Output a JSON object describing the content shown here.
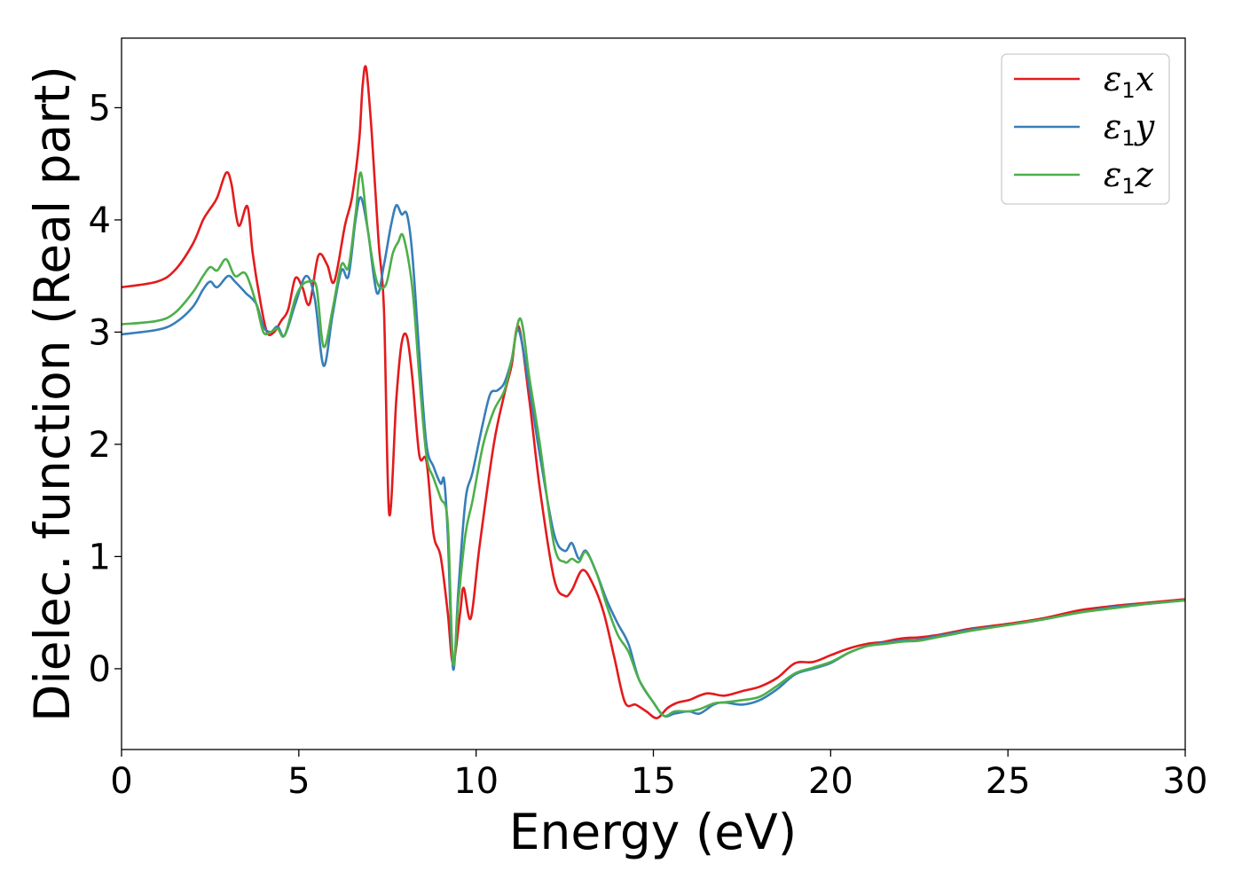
{
  "chart_data": {
    "type": "line",
    "title": "",
    "xlabel": "Energy (eV)",
    "ylabel": "Dielec. function (Real part)",
    "xlim": [
      0,
      30
    ],
    "ylim": [
      -0.72,
      5.62
    ],
    "xticks": [
      "0",
      "5",
      "10",
      "15",
      "20",
      "25",
      "30"
    ],
    "yticks": [
      "0",
      "1",
      "2",
      "3",
      "4",
      "5"
    ],
    "grid": false,
    "legend_position": "top-right",
    "series": [
      {
        "name": "ε1x",
        "legend": {
          "symbol": "ε",
          "sub": "1",
          "axis": "x"
        },
        "color": "#e41a1c",
        "points": [
          [
            0,
            3.4
          ],
          [
            1.0,
            3.45
          ],
          [
            1.5,
            3.55
          ],
          [
            2.0,
            3.78
          ],
          [
            2.3,
            4.0
          ],
          [
            2.5,
            4.1
          ],
          [
            2.7,
            4.2
          ],
          [
            2.95,
            4.42
          ],
          [
            3.1,
            4.32
          ],
          [
            3.3,
            3.95
          ],
          [
            3.55,
            4.12
          ],
          [
            3.7,
            3.7
          ],
          [
            3.9,
            3.3
          ],
          [
            4.1,
            3.0
          ],
          [
            4.3,
            3.0
          ],
          [
            4.5,
            3.1
          ],
          [
            4.7,
            3.2
          ],
          [
            4.9,
            3.48
          ],
          [
            5.1,
            3.4
          ],
          [
            5.3,
            3.25
          ],
          [
            5.55,
            3.68
          ],
          [
            5.8,
            3.6
          ],
          [
            6.0,
            3.45
          ],
          [
            6.3,
            3.95
          ],
          [
            6.5,
            4.2
          ],
          [
            6.7,
            4.7
          ],
          [
            6.8,
            5.2
          ],
          [
            6.9,
            5.35
          ],
          [
            7.05,
            4.8
          ],
          [
            7.25,
            3.8
          ],
          [
            7.4,
            3.2
          ],
          [
            7.55,
            1.38
          ],
          [
            7.75,
            2.4
          ],
          [
            7.9,
            2.9
          ],
          [
            8.05,
            2.96
          ],
          [
            8.2,
            2.6
          ],
          [
            8.4,
            1.9
          ],
          [
            8.6,
            1.85
          ],
          [
            8.8,
            1.2
          ],
          [
            9.0,
            1.0
          ],
          [
            9.2,
            0.5
          ],
          [
            9.35,
            0.05
          ],
          [
            9.55,
            0.5
          ],
          [
            9.65,
            0.72
          ],
          [
            9.85,
            0.45
          ],
          [
            10.1,
            1.1
          ],
          [
            10.5,
            2.0
          ],
          [
            10.8,
            2.45
          ],
          [
            11.0,
            2.7
          ],
          [
            11.2,
            3.05
          ],
          [
            11.5,
            2.4
          ],
          [
            11.8,
            1.6
          ],
          [
            12.2,
            0.8
          ],
          [
            12.5,
            0.65
          ],
          [
            12.7,
            0.7
          ],
          [
            13.0,
            0.88
          ],
          [
            13.3,
            0.75
          ],
          [
            13.6,
            0.5
          ],
          [
            13.9,
            0.1
          ],
          [
            14.2,
            -0.3
          ],
          [
            14.5,
            -0.32
          ],
          [
            14.8,
            -0.38
          ],
          [
            15.1,
            -0.44
          ],
          [
            15.4,
            -0.35
          ],
          [
            15.7,
            -0.3
          ],
          [
            16.0,
            -0.28
          ],
          [
            16.5,
            -0.22
          ],
          [
            17.0,
            -0.24
          ],
          [
            17.5,
            -0.2
          ],
          [
            18.0,
            -0.16
          ],
          [
            18.5,
            -0.08
          ],
          [
            19.0,
            0.05
          ],
          [
            19.5,
            0.06
          ],
          [
            20.0,
            0.12
          ],
          [
            20.5,
            0.18
          ],
          [
            21.0,
            0.22
          ],
          [
            21.5,
            0.24
          ],
          [
            22.0,
            0.27
          ],
          [
            22.5,
            0.28
          ],
          [
            23.0,
            0.3
          ],
          [
            23.5,
            0.33
          ],
          [
            24.0,
            0.36
          ],
          [
            25.0,
            0.4
          ],
          [
            26.0,
            0.45
          ],
          [
            27.0,
            0.52
          ],
          [
            28.0,
            0.56
          ],
          [
            29.0,
            0.59
          ],
          [
            30.0,
            0.62
          ]
        ]
      },
      {
        "name": "ε1y",
        "legend": {
          "symbol": "ε",
          "sub": "1",
          "axis": "y"
        },
        "color": "#377eb8",
        "points": [
          [
            0,
            2.98
          ],
          [
            1.0,
            3.02
          ],
          [
            1.5,
            3.08
          ],
          [
            2.0,
            3.22
          ],
          [
            2.3,
            3.38
          ],
          [
            2.5,
            3.45
          ],
          [
            2.7,
            3.4
          ],
          [
            3.0,
            3.5
          ],
          [
            3.2,
            3.45
          ],
          [
            3.5,
            3.35
          ],
          [
            3.8,
            3.25
          ],
          [
            4.0,
            3.05
          ],
          [
            4.2,
            3.0
          ],
          [
            4.4,
            3.05
          ],
          [
            4.6,
            2.97
          ],
          [
            4.9,
            3.25
          ],
          [
            5.2,
            3.5
          ],
          [
            5.45,
            3.3
          ],
          [
            5.7,
            2.7
          ],
          [
            5.95,
            3.15
          ],
          [
            6.2,
            3.55
          ],
          [
            6.4,
            3.5
          ],
          [
            6.6,
            4.0
          ],
          [
            6.75,
            4.2
          ],
          [
            6.95,
            3.9
          ],
          [
            7.2,
            3.35
          ],
          [
            7.4,
            3.6
          ],
          [
            7.6,
            3.95
          ],
          [
            7.75,
            4.13
          ],
          [
            7.9,
            4.05
          ],
          [
            8.05,
            4.05
          ],
          [
            8.2,
            3.7
          ],
          [
            8.4,
            2.8
          ],
          [
            8.6,
            2.0
          ],
          [
            8.8,
            1.8
          ],
          [
            9.0,
            1.65
          ],
          [
            9.1,
            1.68
          ],
          [
            9.2,
            1.2
          ],
          [
            9.35,
            0.0
          ],
          [
            9.5,
            0.7
          ],
          [
            9.7,
            1.5
          ],
          [
            9.9,
            1.75
          ],
          [
            10.2,
            2.2
          ],
          [
            10.4,
            2.45
          ],
          [
            10.6,
            2.48
          ],
          [
            10.8,
            2.55
          ],
          [
            11.0,
            2.75
          ],
          [
            11.2,
            3.02
          ],
          [
            11.5,
            2.5
          ],
          [
            11.8,
            1.9
          ],
          [
            12.2,
            1.2
          ],
          [
            12.5,
            1.05
          ],
          [
            12.7,
            1.12
          ],
          [
            12.9,
            0.98
          ],
          [
            13.1,
            1.05
          ],
          [
            13.4,
            0.85
          ],
          [
            13.7,
            0.6
          ],
          [
            14.0,
            0.4
          ],
          [
            14.3,
            0.22
          ],
          [
            14.6,
            -0.1
          ],
          [
            15.0,
            -0.3
          ],
          [
            15.3,
            -0.42
          ],
          [
            15.6,
            -0.4
          ],
          [
            16.0,
            -0.38
          ],
          [
            16.3,
            -0.4
          ],
          [
            16.7,
            -0.32
          ],
          [
            17.0,
            -0.3
          ],
          [
            17.5,
            -0.32
          ],
          [
            18.0,
            -0.28
          ],
          [
            18.5,
            -0.18
          ],
          [
            19.0,
            -0.05
          ],
          [
            19.5,
            0.0
          ],
          [
            20.0,
            0.05
          ],
          [
            20.5,
            0.14
          ],
          [
            21.0,
            0.2
          ],
          [
            21.5,
            0.23
          ],
          [
            22.0,
            0.25
          ],
          [
            22.5,
            0.26
          ],
          [
            23.0,
            0.29
          ],
          [
            23.5,
            0.32
          ],
          [
            24.0,
            0.35
          ],
          [
            25.0,
            0.39
          ],
          [
            26.0,
            0.44
          ],
          [
            27.0,
            0.5
          ],
          [
            28.0,
            0.55
          ],
          [
            29.0,
            0.58
          ],
          [
            30.0,
            0.61
          ]
        ]
      },
      {
        "name": "ε1z",
        "legend": {
          "symbol": "ε",
          "sub": "1",
          "axis": "z"
        },
        "color": "#4daf4a",
        "points": [
          [
            0,
            3.07
          ],
          [
            1.0,
            3.1
          ],
          [
            1.5,
            3.17
          ],
          [
            2.0,
            3.35
          ],
          [
            2.3,
            3.5
          ],
          [
            2.5,
            3.58
          ],
          [
            2.7,
            3.55
          ],
          [
            2.95,
            3.65
          ],
          [
            3.2,
            3.5
          ],
          [
            3.5,
            3.52
          ],
          [
            3.8,
            3.25
          ],
          [
            4.0,
            3.0
          ],
          [
            4.2,
            3.0
          ],
          [
            4.4,
            3.03
          ],
          [
            4.6,
            2.97
          ],
          [
            4.9,
            3.3
          ],
          [
            5.1,
            3.42
          ],
          [
            5.3,
            3.45
          ],
          [
            5.5,
            3.4
          ],
          [
            5.7,
            2.87
          ],
          [
            5.95,
            3.2
          ],
          [
            6.2,
            3.6
          ],
          [
            6.4,
            3.58
          ],
          [
            6.6,
            4.05
          ],
          [
            6.75,
            4.42
          ],
          [
            6.95,
            3.9
          ],
          [
            7.2,
            3.45
          ],
          [
            7.45,
            3.42
          ],
          [
            7.65,
            3.7
          ],
          [
            7.8,
            3.8
          ],
          [
            7.95,
            3.85
          ],
          [
            8.2,
            3.4
          ],
          [
            8.4,
            2.6
          ],
          [
            8.6,
            1.9
          ],
          [
            8.8,
            1.7
          ],
          [
            9.0,
            1.52
          ],
          [
            9.2,
            1.3
          ],
          [
            9.35,
            0.05
          ],
          [
            9.5,
            0.6
          ],
          [
            9.7,
            1.2
          ],
          [
            9.9,
            1.5
          ],
          [
            10.2,
            2.0
          ],
          [
            10.5,
            2.3
          ],
          [
            10.8,
            2.48
          ],
          [
            11.0,
            2.75
          ],
          [
            11.25,
            3.12
          ],
          [
            11.5,
            2.6
          ],
          [
            11.8,
            2.0
          ],
          [
            12.2,
            1.1
          ],
          [
            12.5,
            0.95
          ],
          [
            12.7,
            0.98
          ],
          [
            12.9,
            0.95
          ],
          [
            13.1,
            1.04
          ],
          [
            13.4,
            0.85
          ],
          [
            13.7,
            0.55
          ],
          [
            14.0,
            0.3
          ],
          [
            14.3,
            0.15
          ],
          [
            14.6,
            -0.1
          ],
          [
            15.0,
            -0.3
          ],
          [
            15.3,
            -0.42
          ],
          [
            15.6,
            -0.38
          ],
          [
            16.0,
            -0.38
          ],
          [
            16.3,
            -0.36
          ],
          [
            16.7,
            -0.31
          ],
          [
            17.0,
            -0.3
          ],
          [
            17.5,
            -0.28
          ],
          [
            18.0,
            -0.25
          ],
          [
            18.5,
            -0.15
          ],
          [
            19.0,
            -0.04
          ],
          [
            19.5,
            0.01
          ],
          [
            20.0,
            0.06
          ],
          [
            20.5,
            0.14
          ],
          [
            21.0,
            0.2
          ],
          [
            21.5,
            0.22
          ],
          [
            22.0,
            0.24
          ],
          [
            22.5,
            0.25
          ],
          [
            23.0,
            0.28
          ],
          [
            23.5,
            0.31
          ],
          [
            24.0,
            0.34
          ],
          [
            25.0,
            0.39
          ],
          [
            26.0,
            0.44
          ],
          [
            27.0,
            0.5
          ],
          [
            28.0,
            0.54
          ],
          [
            29.0,
            0.58
          ],
          [
            30.0,
            0.61
          ]
        ]
      }
    ]
  }
}
